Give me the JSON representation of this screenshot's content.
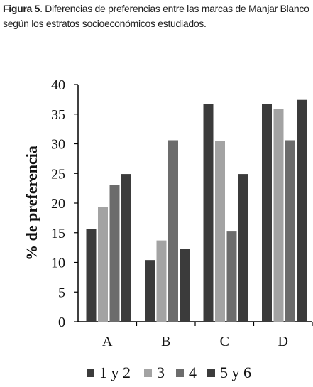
{
  "figure": {
    "label": "Figura 5",
    "caption": ". Diferencias de preferencias entre las marcas de Manjar Blanco según los estratos socioeconómicos estudiados."
  },
  "chart_data": {
    "type": "bar",
    "categories": [
      "A",
      "B",
      "C",
      "D"
    ],
    "series": [
      {
        "name": "1 y 2",
        "values": [
          15.6,
          10.4,
          36.7,
          36.7
        ],
        "color": "#3b3b3b"
      },
      {
        "name": "3",
        "values": [
          19.3,
          13.7,
          30.5,
          35.9
        ],
        "color": "#a3a3a3"
      },
      {
        "name": "4",
        "values": [
          23.0,
          30.6,
          15.2,
          30.6
        ],
        "color": "#6c6c6c"
      },
      {
        "name": "5 y 6",
        "values": [
          24.9,
          12.3,
          24.9,
          37.4
        ],
        "color": "#3b3b3b"
      }
    ],
    "title": "",
    "xlabel": "",
    "ylabel": "% de preferencia",
    "ylim": [
      0,
      40
    ],
    "yticks": [
      "0",
      "5",
      "10",
      "15",
      "20",
      "25",
      "30",
      "35",
      "40"
    ],
    "grid": false,
    "legend_position": "bottom"
  }
}
